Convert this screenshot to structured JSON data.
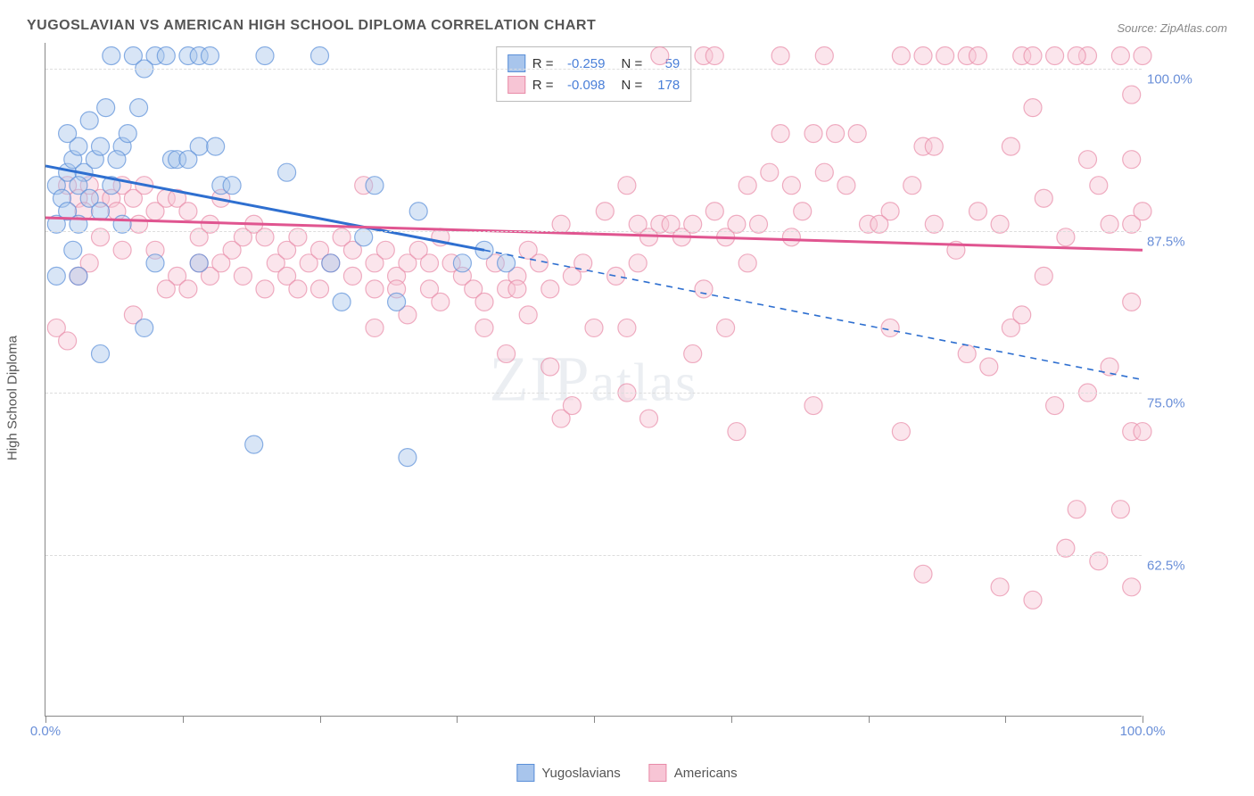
{
  "title": "YUGOSLAVIAN VS AMERICAN HIGH SCHOOL DIPLOMA CORRELATION CHART",
  "source": "Source: ZipAtlas.com",
  "watermark": "ZIPatlas",
  "chart": {
    "type": "scatter",
    "y_axis_label": "High School Diploma",
    "xlim": [
      0,
      100
    ],
    "ylim": [
      50,
      102
    ],
    "y_ticks": [
      62.5,
      75.0,
      87.5,
      100.0
    ],
    "y_tick_labels": [
      "62.5%",
      "75.0%",
      "87.5%",
      "100.0%"
    ],
    "x_ticks": [
      0,
      12.5,
      25,
      37.5,
      50,
      62.5,
      75,
      87.5,
      100
    ],
    "x_tick_labels_shown": {
      "0": "0.0%",
      "100": "100.0%"
    },
    "background_color": "#ffffff",
    "grid_color": "#dddddd",
    "axis_color": "#888888",
    "label_fontsize": 15,
    "tick_label_color": "#6a8fd8",
    "point_radius": 10,
    "point_opacity": 0.45,
    "series": [
      {
        "name": "Yugoslavians",
        "fill_color": "#a8c5ec",
        "stroke_color": "#5a8fd8",
        "trend_color": "#2e6fd0",
        "R": "-0.259",
        "N": "59",
        "trend": {
          "x1": 0,
          "y1": 92.5,
          "x2": 40,
          "y2": 86,
          "dash_to_x": 100,
          "dash_to_y": 76
        },
        "points": [
          [
            1,
            91
          ],
          [
            2,
            92
          ],
          [
            1.5,
            90
          ],
          [
            2.5,
            93
          ],
          [
            3,
            94
          ],
          [
            2,
            89
          ],
          [
            1,
            88
          ],
          [
            3.5,
            92
          ],
          [
            4,
            96
          ],
          [
            3,
            91
          ],
          [
            2,
            95
          ],
          [
            4.5,
            93
          ],
          [
            5,
            94
          ],
          [
            5.5,
            97
          ],
          [
            4,
            90
          ],
          [
            6,
            101
          ],
          [
            7,
            94
          ],
          [
            6.5,
            93
          ],
          [
            5,
            89
          ],
          [
            3,
            88
          ],
          [
            2.5,
            86
          ],
          [
            7.5,
            95
          ],
          [
            8,
            101
          ],
          [
            8.5,
            97
          ],
          [
            6,
            91
          ],
          [
            7,
            88
          ],
          [
            10,
            101
          ],
          [
            9,
            100
          ],
          [
            11,
            101
          ],
          [
            11.5,
            93
          ],
          [
            10,
            85
          ],
          [
            12,
            93
          ],
          [
            13,
            101
          ],
          [
            14,
            101
          ],
          [
            15,
            101
          ],
          [
            14,
            94
          ],
          [
            15.5,
            94
          ],
          [
            13,
            93
          ],
          [
            9,
            80
          ],
          [
            5,
            78
          ],
          [
            16,
            91
          ],
          [
            17,
            91
          ],
          [
            20,
            101
          ],
          [
            19,
            71
          ],
          [
            22,
            92
          ],
          [
            25,
            101
          ],
          [
            26,
            85
          ],
          [
            27,
            82
          ],
          [
            29,
            87
          ],
          [
            30,
            91
          ],
          [
            32,
            82
          ],
          [
            33,
            70
          ],
          [
            34,
            89
          ],
          [
            38,
            85
          ],
          [
            40,
            86
          ],
          [
            42,
            85
          ],
          [
            14,
            85
          ],
          [
            3,
            84
          ],
          [
            1,
            84
          ]
        ]
      },
      {
        "name": "Americans",
        "fill_color": "#f7c5d5",
        "stroke_color": "#e88ba8",
        "trend_color": "#e05590",
        "R": "-0.098",
        "N": "178",
        "trend": {
          "x1": 0,
          "y1": 88.5,
          "x2": 100,
          "y2": 86
        },
        "points": [
          [
            2,
            91
          ],
          [
            3,
            90
          ],
          [
            4,
            91
          ],
          [
            5,
            90
          ],
          [
            3.5,
            89
          ],
          [
            5,
            87
          ],
          [
            6,
            90
          ],
          [
            7,
            91
          ],
          [
            6.5,
            89
          ],
          [
            4,
            85
          ],
          [
            3,
            84
          ],
          [
            8,
            90
          ],
          [
            9,
            91
          ],
          [
            8.5,
            88
          ],
          [
            10,
            89
          ],
          [
            7,
            86
          ],
          [
            11,
            90
          ],
          [
            12,
            90
          ],
          [
            13,
            89
          ],
          [
            10,
            86
          ],
          [
            12,
            84
          ],
          [
            14,
            87
          ],
          [
            15,
            88
          ],
          [
            16,
            90
          ],
          [
            14,
            85
          ],
          [
            15,
            84
          ],
          [
            17,
            86
          ],
          [
            18,
            87
          ],
          [
            16,
            85
          ],
          [
            13,
            83
          ],
          [
            19,
            88
          ],
          [
            20,
            87
          ],
          [
            18,
            84
          ],
          [
            21,
            85
          ],
          [
            22,
            86
          ],
          [
            20,
            83
          ],
          [
            23,
            87
          ],
          [
            22,
            84
          ],
          [
            24,
            85
          ],
          [
            25,
            86
          ],
          [
            23,
            83
          ],
          [
            26,
            85
          ],
          [
            27,
            87
          ],
          [
            25,
            83
          ],
          [
            28,
            86
          ],
          [
            29,
            91
          ],
          [
            28,
            84
          ],
          [
            30,
            85
          ],
          [
            31,
            86
          ],
          [
            30,
            83
          ],
          [
            32,
            84
          ],
          [
            33,
            85
          ],
          [
            34,
            86
          ],
          [
            32,
            83
          ],
          [
            35,
            85
          ],
          [
            36,
            87
          ],
          [
            35,
            83
          ],
          [
            37,
            85
          ],
          [
            38,
            84
          ],
          [
            36,
            82
          ],
          [
            39,
            83
          ],
          [
            40,
            82
          ],
          [
            41,
            85
          ],
          [
            42,
            83
          ],
          [
            40,
            80
          ],
          [
            43,
            84
          ],
          [
            44,
            86
          ],
          [
            43,
            83
          ],
          [
            45,
            85
          ],
          [
            46,
            77
          ],
          [
            44,
            81
          ],
          [
            47,
            88
          ],
          [
            48,
            84
          ],
          [
            49,
            85
          ],
          [
            46,
            83
          ],
          [
            51,
            89
          ],
          [
            53,
            91
          ],
          [
            54,
            88
          ],
          [
            55,
            87
          ],
          [
            52,
            84
          ],
          [
            56,
            88
          ],
          [
            54,
            85
          ],
          [
            53,
            80
          ],
          [
            57,
            88
          ],
          [
            55,
            73
          ],
          [
            58,
            87
          ],
          [
            56,
            101
          ],
          [
            59,
            88
          ],
          [
            60,
            83
          ],
          [
            59,
            78
          ],
          [
            61,
            89
          ],
          [
            62,
            87
          ],
          [
            60,
            101
          ],
          [
            63,
            88
          ],
          [
            64,
            91
          ],
          [
            61,
            101
          ],
          [
            66,
            92
          ],
          [
            65,
            88
          ],
          [
            63,
            72
          ],
          [
            68,
            91
          ],
          [
            67,
            101
          ],
          [
            69,
            89
          ],
          [
            73,
            91
          ],
          [
            70,
            95
          ],
          [
            71,
            101
          ],
          [
            68,
            87
          ],
          [
            67,
            95
          ],
          [
            77,
            89
          ],
          [
            74,
            95
          ],
          [
            72,
            95
          ],
          [
            75,
            88
          ],
          [
            70,
            74
          ],
          [
            79,
            91
          ],
          [
            78,
            101
          ],
          [
            71,
            92
          ],
          [
            80,
            94
          ],
          [
            76,
            88
          ],
          [
            78,
            72
          ],
          [
            82,
            101
          ],
          [
            81,
            88
          ],
          [
            77,
            80
          ],
          [
            83,
            86
          ],
          [
            80,
            101
          ],
          [
            84,
            101
          ],
          [
            85,
            89
          ],
          [
            81,
            94
          ],
          [
            86,
            77
          ],
          [
            87,
            88
          ],
          [
            85,
            101
          ],
          [
            88,
            94
          ],
          [
            80,
            61
          ],
          [
            89,
            101
          ],
          [
            90,
            101
          ],
          [
            84,
            78
          ],
          [
            88,
            80
          ],
          [
            91,
            90
          ],
          [
            87,
            60
          ],
          [
            92,
            101
          ],
          [
            89,
            81
          ],
          [
            93,
            87
          ],
          [
            90,
            97
          ],
          [
            94,
            66
          ],
          [
            91,
            84
          ],
          [
            92,
            74
          ],
          [
            95,
            101
          ],
          [
            90,
            59
          ],
          [
            93,
            63
          ],
          [
            96,
            91
          ],
          [
            94,
            101
          ],
          [
            97,
            88
          ],
          [
            95,
            75
          ],
          [
            98,
            101
          ],
          [
            96,
            62
          ],
          [
            99,
            98
          ],
          [
            95,
            93
          ],
          [
            99,
            88
          ],
          [
            97,
            77
          ],
          [
            98,
            66
          ],
          [
            99,
            72
          ],
          [
            100,
            101
          ],
          [
            99,
            93
          ],
          [
            100,
            89
          ],
          [
            99,
            82
          ],
          [
            100,
            72
          ],
          [
            99,
            60
          ],
          [
            42,
            78
          ],
          [
            47,
            73
          ],
          [
            33,
            81
          ],
          [
            30,
            80
          ],
          [
            50,
            80
          ],
          [
            8,
            81
          ],
          [
            11,
            83
          ],
          [
            1,
            80
          ],
          [
            2,
            79
          ],
          [
            62,
            80
          ],
          [
            64,
            85
          ],
          [
            53,
            75
          ],
          [
            48,
            74
          ]
        ]
      }
    ]
  }
}
